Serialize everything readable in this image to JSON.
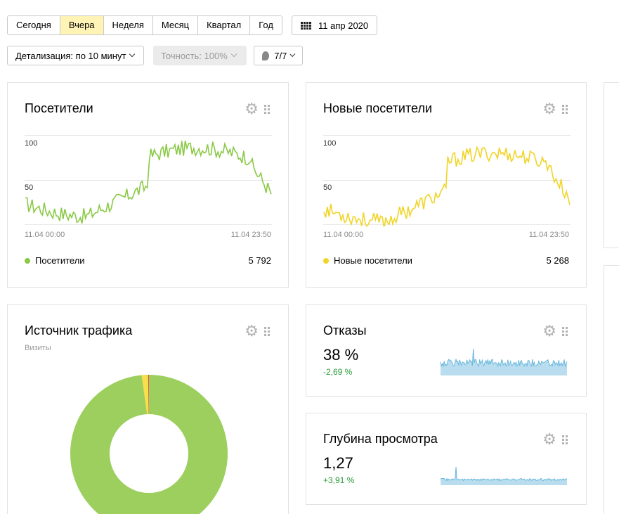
{
  "periods": {
    "items": [
      "Сегодня",
      "Вчера",
      "Неделя",
      "Месяц",
      "Квартал",
      "Год"
    ],
    "active": "Вчера"
  },
  "date": "11 апр 2020",
  "controls": {
    "detail": "Детализация: по 10 минут",
    "accuracy": "Точность: 100%",
    "segments": "7/7"
  },
  "cards": {
    "visitors": {
      "title": "Посетители",
      "y_ticks": [
        "100",
        "50"
      ],
      "x_start": "11.04 00:00",
      "x_end": "11.04 23:50",
      "legend": "Посетители",
      "total": "5 792",
      "color": "#8ac946"
    },
    "new_visitors": {
      "title": "Новые посетители",
      "y_ticks": [
        "100",
        "50"
      ],
      "x_start": "11.04 00:00",
      "x_end": "11.04 23:50",
      "legend": "Новые посетители",
      "total": "5 268",
      "color": "#f0d428"
    },
    "traffic": {
      "title": "Источник трафика",
      "subtitle": "Визиты",
      "colors": {
        "main": "#9ccf5e",
        "yellow": "#f7df4d",
        "red": "#e05050"
      }
    },
    "bounce": {
      "title": "Отказы",
      "value": "38 %",
      "delta": "-2,69 %",
      "color": "#8ccbe6"
    },
    "depth": {
      "title": "Глубина просмотра",
      "value": "1,27",
      "delta": "+3,91 %",
      "color": "#8ccbe6"
    }
  }
}
